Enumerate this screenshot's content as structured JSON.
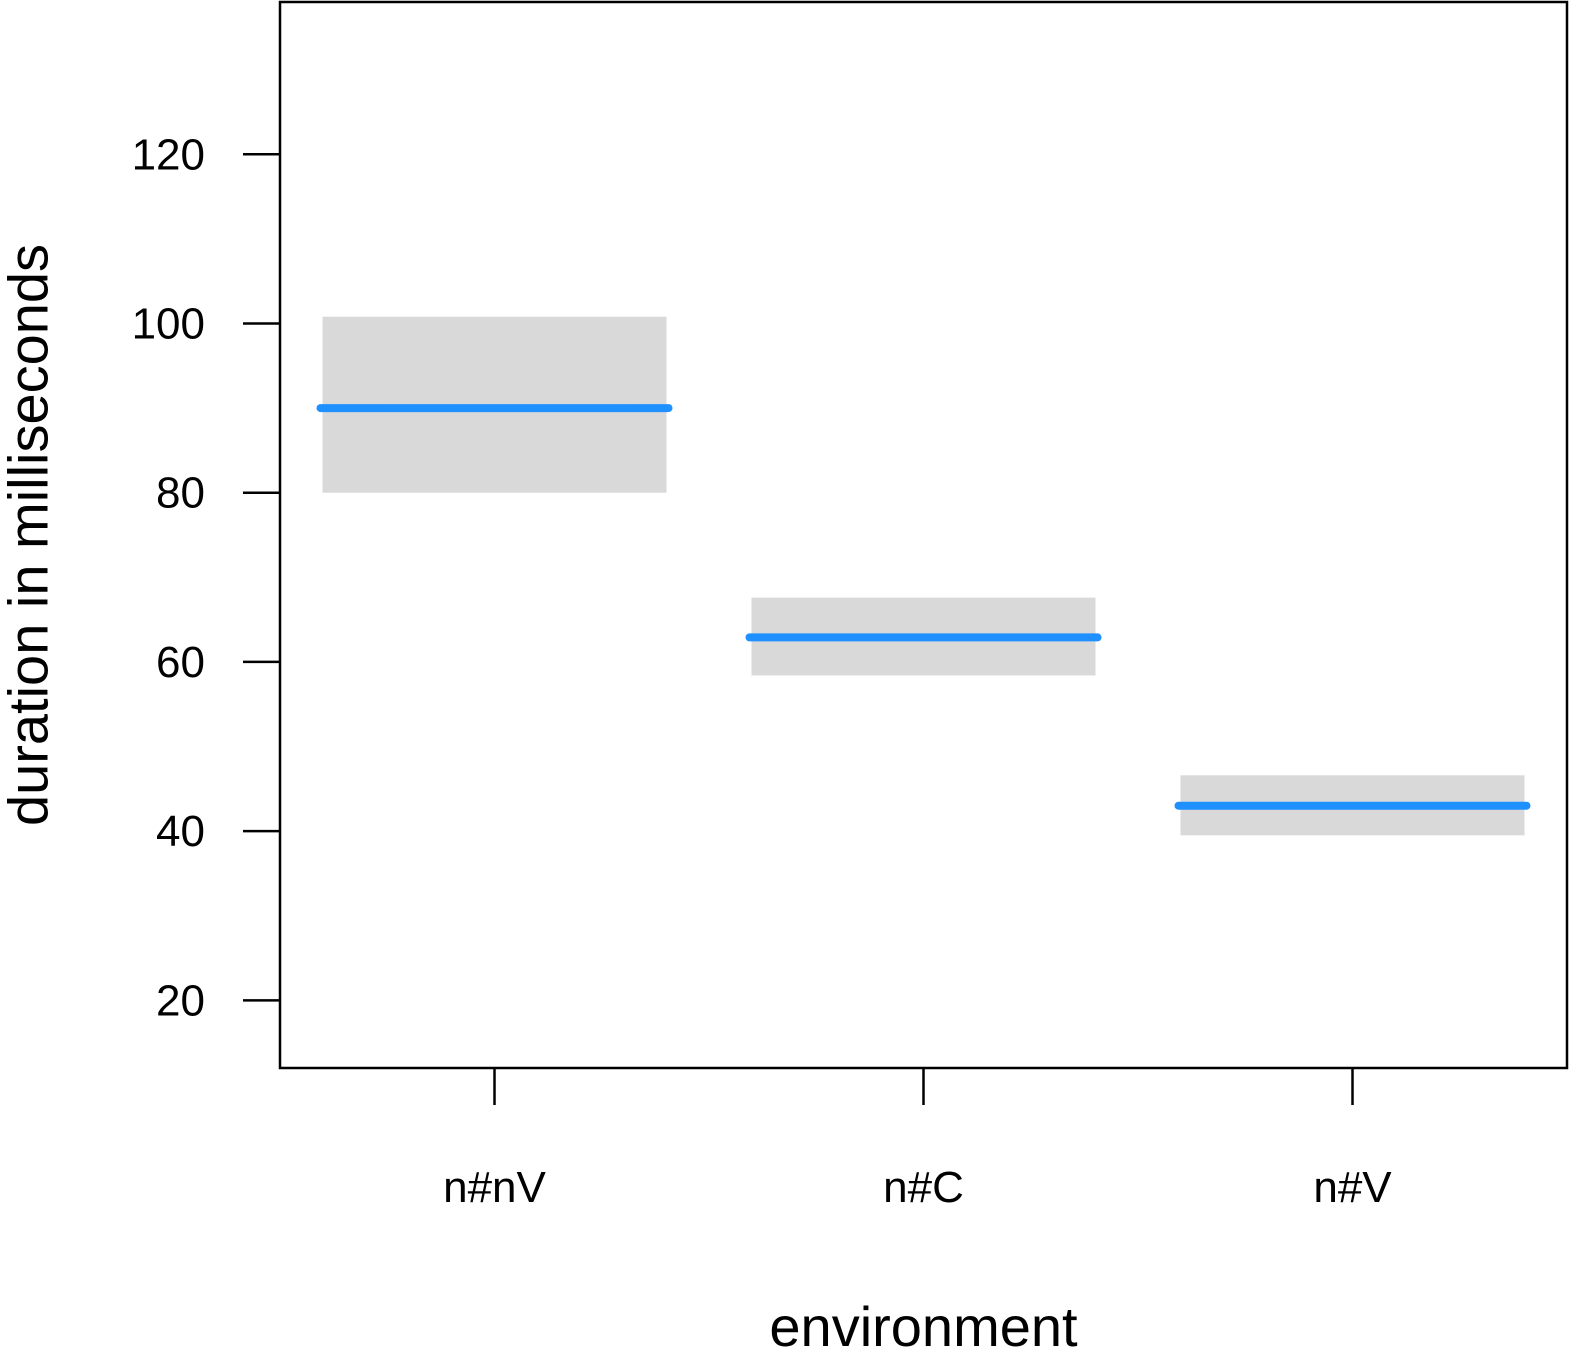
{
  "chart_data": {
    "type": "bar",
    "title": "",
    "xlabel": "environment",
    "ylabel": "duration in milliseconds",
    "categories": [
      "n#nV",
      "n#C",
      "n#V"
    ],
    "series": [
      {
        "values": [
          90,
          62.9,
          43
        ],
        "lower": [
          80,
          58.4,
          39.5
        ],
        "upper": [
          100.8,
          67.6,
          46.6
        ]
      }
    ],
    "ylim": [
      12,
      138
    ],
    "yticks": [
      20,
      40,
      60,
      80,
      100,
      120
    ],
    "grid": false,
    "colors": {
      "line": "#1e90ff",
      "band": "#d9d9d9",
      "axis": "#000000"
    }
  }
}
